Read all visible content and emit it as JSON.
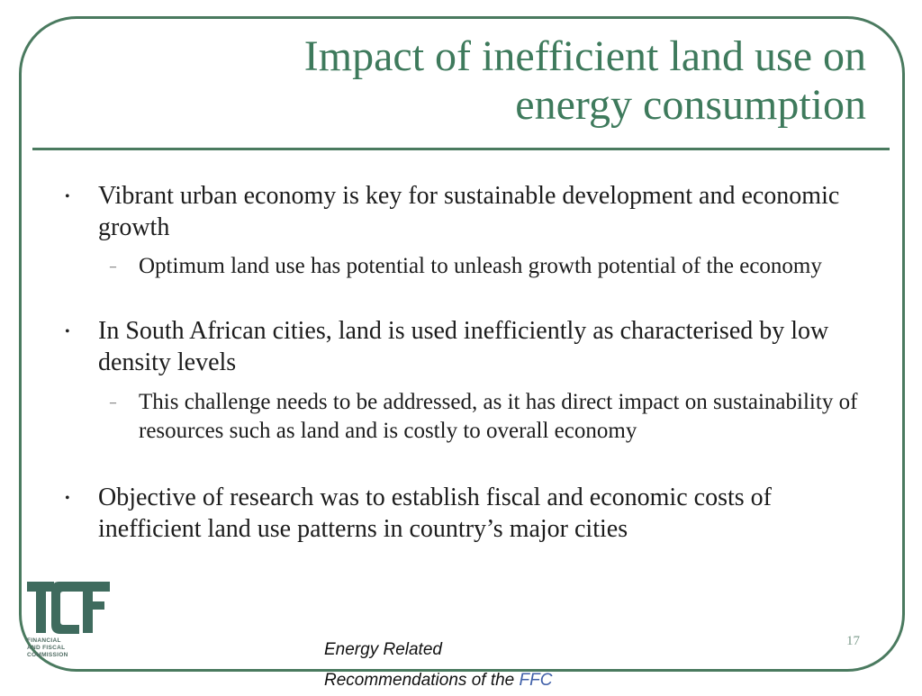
{
  "slide": {
    "title_line1": "Impact of inefficient land use on",
    "title_line2": "energy consumption",
    "bullets": [
      {
        "text": "Vibrant urban economy is key for sustainable development and economic growth",
        "sub": "Optimum land use has potential to unleash growth potential of the economy"
      },
      {
        "text": "In South African cities, land is used inefficiently as characterised by low density levels",
        "sub": "This challenge needs to be addressed, as it has direct impact on sustainability of resources such as land and is costly to overall economy"
      },
      {
        "text": "Objective of research was to establish fiscal and economic costs of inefficient land use patterns in country’s major cities"
      }
    ],
    "bullet_glyph": "•",
    "sub_glyph": "–",
    "page_number": "17"
  },
  "logo": {
    "caption_line1": "FINANCIAL",
    "caption_line2": "AND FISCAL",
    "caption_line3": "COMMISSION",
    "color": "#3f6b5e"
  },
  "footer": {
    "line1": "Energy Related",
    "line2_prefix": "Recommendations of the",
    "line2_suffix": " FFC"
  },
  "colors": {
    "title": "#3e7a5c",
    "frame": "#4a7a5f",
    "body_text": "#1c1c1c"
  }
}
